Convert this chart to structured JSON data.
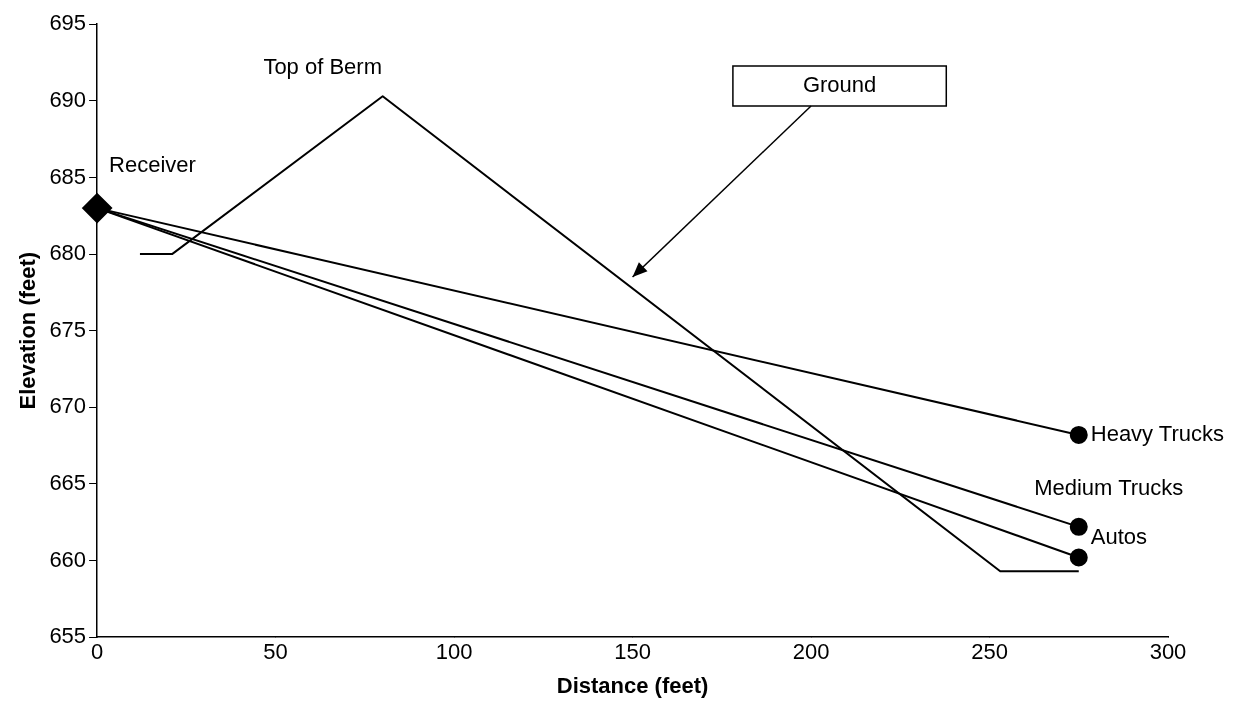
{
  "chart_data": {
    "type": "line",
    "xlabel": "Distance (feet)",
    "ylabel": "Elevation (feet)",
    "xlim": [
      0,
      300
    ],
    "xticks": [
      0,
      50,
      100,
      150,
      200,
      250,
      300
    ],
    "ylim": [
      655,
      695
    ],
    "yticks": [
      655,
      660,
      665,
      670,
      675,
      680,
      685,
      690,
      695
    ],
    "grid": false,
    "legend": false,
    "series": [
      {
        "color": "#000000",
        "marker": "none",
        "x": [
          12,
          21,
          80,
          253,
          275
        ],
        "values": [
          680,
          680,
          690.3,
          659.3,
          659.3
        ]
      },
      {
        "name": "Heavy Trucks",
        "color": "#000000",
        "marker": "circle",
        "x": [
          0,
          275
        ],
        "values": [
          683,
          668.2
        ]
      },
      {
        "name": "Medium Trucks",
        "color": "#000000",
        "marker": "circle",
        "x": [
          0,
          275
        ],
        "values": [
          683,
          662.2
        ]
      },
      {
        "name": "Autos",
        "color": "#000000",
        "marker": "circle",
        "x": [
          0,
          275
        ],
        "values": [
          683,
          660.2
        ]
      },
      {
        "type": "scatter",
        "name": "Receiver",
        "color": "#000000",
        "marker": "diamond",
        "x": [
          0
        ],
        "values": [
          683
        ]
      }
    ],
    "annotations": [
      {
        "text": "Top of Berm",
        "x": 80,
        "y": 690.3
      },
      "Ground"
    ]
  }
}
